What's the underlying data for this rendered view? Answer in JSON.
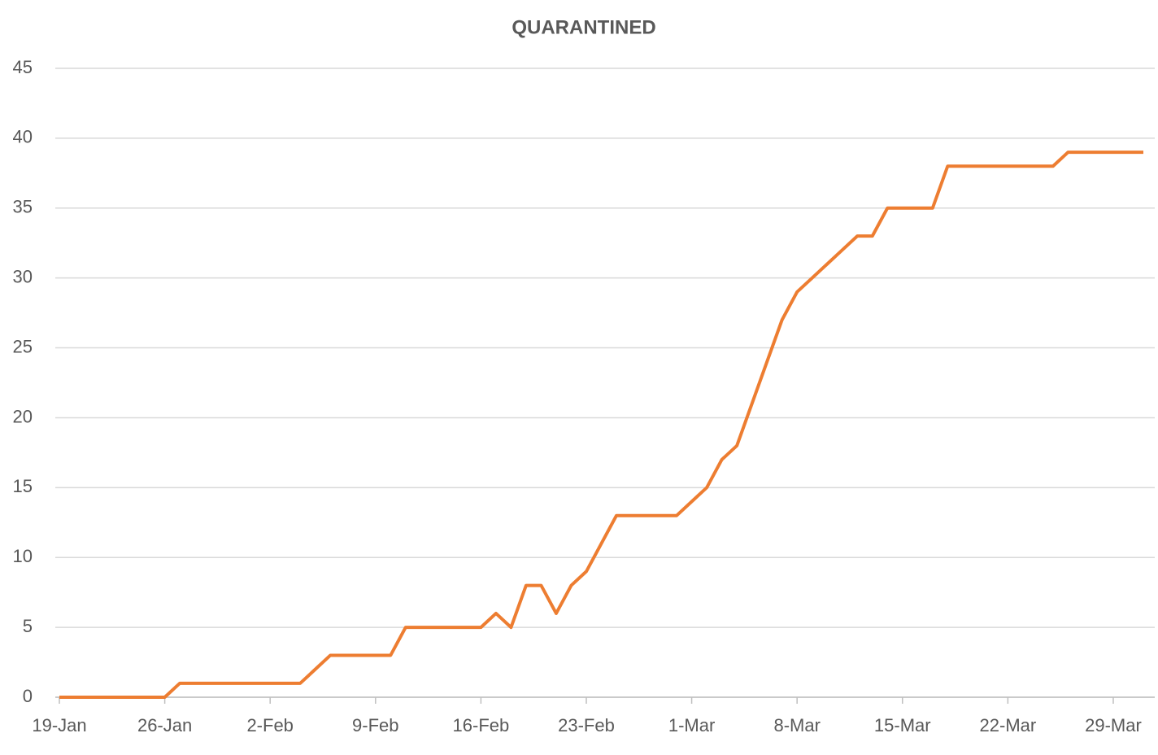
{
  "chart_data": {
    "type": "line",
    "title": "QUARANTINED",
    "categories": [
      "19-Jan",
      null,
      null,
      null,
      null,
      null,
      null,
      "26-Jan",
      null,
      null,
      null,
      null,
      null,
      null,
      "2-Feb",
      null,
      null,
      null,
      null,
      null,
      null,
      "9-Feb",
      null,
      null,
      null,
      null,
      null,
      null,
      "16-Feb",
      null,
      null,
      null,
      null,
      null,
      null,
      "23-Feb",
      null,
      null,
      null,
      null,
      null,
      null,
      "1-Mar",
      null,
      null,
      null,
      null,
      null,
      null,
      "8-Mar",
      null,
      null,
      null,
      null,
      null,
      null,
      "15-Mar",
      null,
      null,
      null,
      null,
      null,
      null,
      "22-Mar",
      null,
      null,
      null,
      null,
      null,
      null,
      "29-Mar",
      null,
      null
    ],
    "series": [
      {
        "name": "Quarantined",
        "color": "#ED7D31",
        "values": [
          0,
          0,
          0,
          0,
          0,
          0,
          0,
          0,
          1,
          1,
          1,
          1,
          1,
          1,
          1,
          1,
          1,
          2,
          3,
          3,
          3,
          3,
          3,
          5,
          5,
          5,
          5,
          5,
          5,
          6,
          5,
          8,
          8,
          6,
          8,
          9,
          11,
          13,
          13,
          13,
          13,
          13,
          14,
          15,
          17,
          18,
          21,
          24,
          27,
          29,
          30,
          31,
          32,
          33,
          33,
          35,
          35,
          35,
          35,
          38,
          38,
          38,
          38,
          38,
          38,
          38,
          38,
          39,
          39,
          39,
          39,
          39,
          39
        ]
      }
    ],
    "ylim": [
      0,
      45
    ],
    "yticks": [
      0,
      5,
      10,
      15,
      20,
      25,
      30,
      35,
      40,
      45
    ],
    "grid": true
  }
}
